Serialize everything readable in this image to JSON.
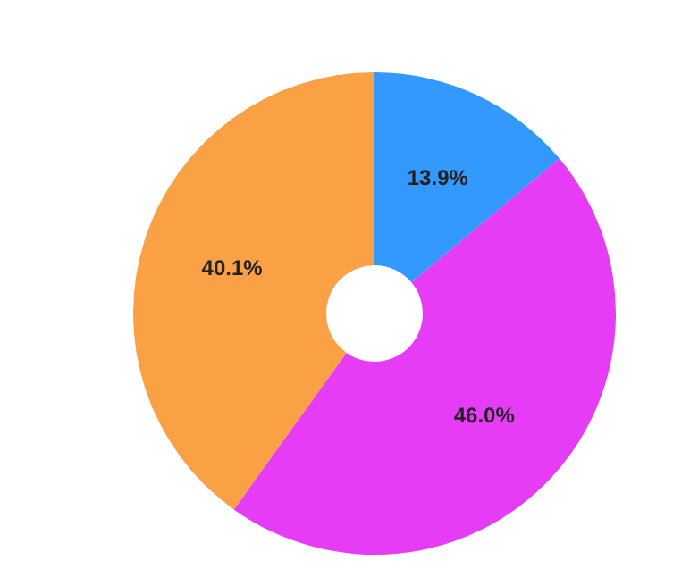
{
  "chart_data": {
    "type": "donut",
    "categories": [
      null,
      null,
      null
    ],
    "values": [
      13.9,
      46.0,
      40.1
    ],
    "colors": [
      "#3399ff",
      "#e63cf5",
      "#f9a144"
    ],
    "value_labels": [
      "13.9%",
      "46.0%",
      "40.1%"
    ]
  }
}
